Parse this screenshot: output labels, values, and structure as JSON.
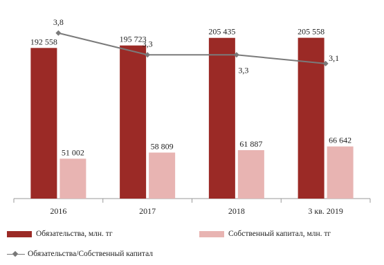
{
  "chart_data": {
    "type": "bar",
    "categories": [
      "2016",
      "2017",
      "2018",
      "3 кв. 2019"
    ],
    "series": [
      {
        "name": "Обязательства, млн. тг",
        "kind": "bar",
        "color": "#9b2a26",
        "values": [
          192558,
          195723,
          205435,
          205558
        ],
        "labels": [
          "192 558",
          "195 723",
          "205 435",
          "205 558"
        ]
      },
      {
        "name": "Собственный капитал, млн. тг",
        "kind": "bar",
        "color": "#e8b4b2",
        "values": [
          51002,
          58809,
          61887,
          66642
        ],
        "labels": [
          "51 002",
          "58 809",
          "61 887",
          "66 642"
        ]
      },
      {
        "name": "Обязательства/Собственный капитал",
        "kind": "line",
        "color": "#7a7a7a",
        "values": [
          3.8,
          3.3,
          3.3,
          3.1
        ],
        "labels": [
          "3,8",
          "3,3",
          "3,3",
          "3,1"
        ]
      }
    ],
    "ylim": [
      0,
      245000
    ],
    "ylim_secondary": [
      0,
      4.4
    ],
    "legend_position": "bottom",
    "grid": false
  }
}
